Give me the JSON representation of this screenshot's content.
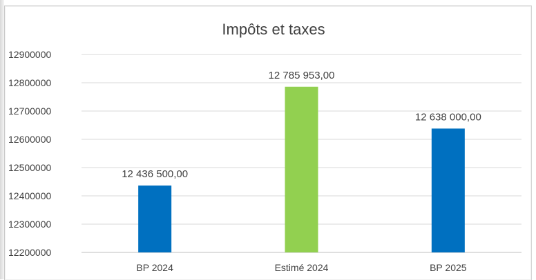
{
  "chart_data": {
    "type": "bar",
    "title": "Impôts et taxes",
    "xlabel": "",
    "ylabel": "",
    "categories": [
      "BP 2024",
      "Estimé 2024",
      "BP 2025"
    ],
    "values": [
      12436500.0,
      12785953.0,
      12638000.0
    ],
    "data_labels": [
      "12 436 500,00",
      "12 785 953,00",
      "12 638 000,00"
    ],
    "bar_colors": [
      "#0070c0",
      "#92d050",
      "#0070c0"
    ],
    "ylim": [
      12200000,
      12900000
    ],
    "yticks": [
      12200000,
      12300000,
      12400000,
      12500000,
      12600000,
      12700000,
      12800000,
      12900000
    ],
    "ytick_labels": [
      "12200000",
      "12300000",
      "12400000",
      "12500000",
      "12600000",
      "12700000",
      "12800000",
      "12900000"
    ],
    "grid": true,
    "legend": "none"
  }
}
